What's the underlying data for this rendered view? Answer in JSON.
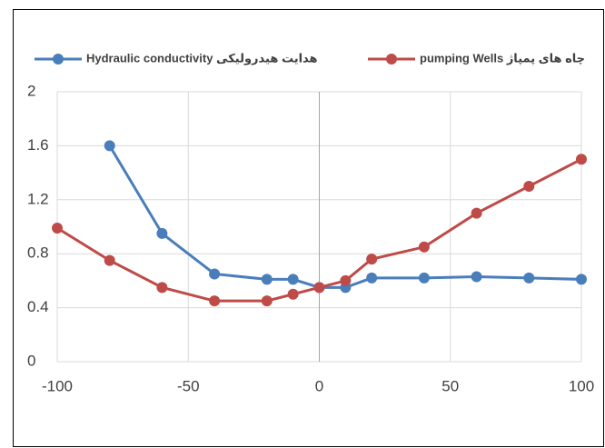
{
  "chart_data": {
    "type": "line",
    "x": [
      -100,
      -80,
      -60,
      -40,
      -20,
      -10,
      0,
      10,
      20,
      40,
      60,
      80,
      100
    ],
    "series": [
      {
        "name": "Hydraulic conductivity   هدایت هیدرولیکی",
        "color": "#4a7ebb",
        "values": [
          null,
          1.6,
          0.95,
          0.65,
          0.61,
          0.61,
          0.55,
          0.55,
          0.62,
          0.62,
          0.63,
          0.62,
          0.61
        ]
      },
      {
        "name": "pumping Wells چاه های پمپاژ",
        "color": "#be4b48",
        "values": [
          0.99,
          0.75,
          0.55,
          0.45,
          0.45,
          0.5,
          0.55,
          0.6,
          0.76,
          0.85,
          1.1,
          1.3,
          1.5
        ]
      }
    ],
    "xlim": [
      -100,
      100
    ],
    "xticks": [
      -100,
      -50,
      0,
      50,
      100
    ],
    "ylim": [
      0,
      2
    ],
    "yticks": [
      0,
      0.4,
      0.8,
      1.2,
      1.6,
      2
    ],
    "grid": true,
    "legend": "top"
  }
}
